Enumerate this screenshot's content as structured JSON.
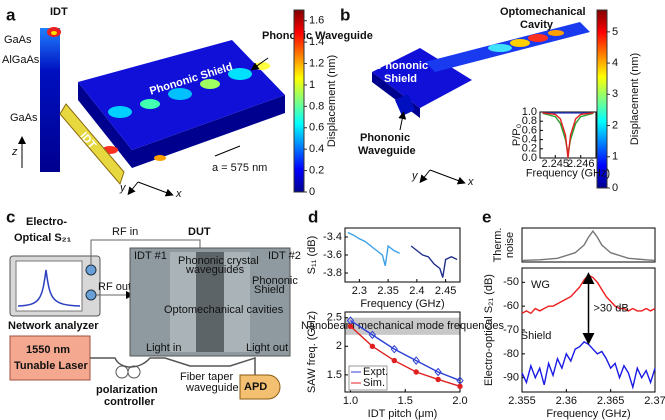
{
  "panel_a": {
    "label": "a",
    "idt": "IDT",
    "layers": [
      "GaAs",
      "AlGaAs",
      "GaAs"
    ],
    "z_axis": "z",
    "shield": "Phononic Shield",
    "waveguide": "Phononic Waveguide",
    "idt_device": "IDT",
    "period": "a = 575 nm",
    "y_axis": "y",
    "x_axis": "x",
    "colorbar": {
      "label": "Displacement (nm)",
      "ylim": [
        0,
        1.7
      ],
      "yticks": [
        0,
        0.2,
        0.4,
        0.6,
        0.8,
        1,
        1.2,
        1.4,
        1.6
      ]
    }
  },
  "panel_b": {
    "label": "b",
    "cavity_lines": [
      "Optomechanical",
      "Cavity"
    ],
    "shield_lines": [
      "Phononic",
      "Shield"
    ],
    "waveguide_lines": [
      "Phononic",
      "Waveguide"
    ],
    "y_axis": "y",
    "x_axis": "x",
    "colorbar": {
      "label": "Displacement (nm)",
      "ylim": [
        0,
        5.7
      ],
      "yticks": [
        0,
        1,
        2,
        3,
        4,
        5
      ]
    }
  },
  "panel_c": {
    "label": "c",
    "title_lines": [
      "Electro-",
      "Optical S₂₁"
    ],
    "rf_in": "RF in",
    "rf_out": "RF out",
    "analyzer": "Network analyzer",
    "dut": "DUT",
    "idt1": "IDT #1",
    "idt2": "IDT #2",
    "pc_waveguides_lines": [
      "Phononic crystal",
      "waveguides"
    ],
    "shield_lines": [
      "Phononic",
      "Shield"
    ],
    "cavities": "Optomechanical cavities",
    "laser_lines": [
      "1550 nm",
      "Tunable Laser"
    ],
    "polarization_lines": [
      "polarization",
      "controller"
    ],
    "light_in": "Light in",
    "fiber_lines": [
      "Fiber taper",
      "waveguide"
    ],
    "light_out": "Light out",
    "apd": "APD"
  },
  "panel_d": {
    "label": "d"
  },
  "panel_e": {
    "label": "e"
  },
  "chart_data": [
    {
      "type": "line",
      "ylabel": "P/P₀",
      "xlabel": "Frequency (GHz)",
      "x": [
        2.2445,
        2.245,
        2.2452,
        2.2454,
        2.2455,
        2.2456,
        2.2458,
        2.246,
        2.2465
      ],
      "xlim": [
        2.2444,
        2.2466
      ],
      "xticks": [
        2.245,
        2.246
      ],
      "ylim": [
        0,
        1
      ],
      "yticks": [
        {
          "value": 0,
          "label": "0.0"
        },
        0.2,
        0.4,
        0.6,
        0.8,
        {
          "value": 1,
          "label": "1.0"
        }
      ],
      "series": [
        {
          "color": "#2b3fbf",
          "values": [
            0.98,
            0.98,
            0.98,
            0.98,
            0.98,
            0.98,
            0.98,
            0.98,
            0.98
          ]
        },
        {
          "color": "#2ca02c",
          "values": [
            0.97,
            0.9,
            0.75,
            0.4,
            0.1,
            0.4,
            0.75,
            0.9,
            0.97
          ]
        },
        {
          "color": "#e02020",
          "values": [
            0.98,
            0.95,
            0.85,
            0.5,
            0,
            0.5,
            0.85,
            0.95,
            0.98
          ]
        }
      ]
    },
    {
      "type": "line",
      "ylabel": "S₁₁ (dB)",
      "xlabel": "Frequency (GHz)",
      "xlim": [
        2.275,
        2.475
      ],
      "xticks": [
        2.3,
        2.35,
        2.4,
        2.45
      ],
      "ylim": [
        -3.9,
        -3.3
      ],
      "yticks": [
        -3.4,
        -3.6,
        -3.8
      ],
      "series": [
        {
          "color": "#3aa0e8",
          "x": [
            2.28,
            2.29,
            2.3,
            2.31,
            2.32,
            2.33,
            2.34,
            2.345,
            2.35,
            2.36,
            2.37
          ],
          "values": [
            -3.35,
            -3.38,
            -3.42,
            -3.45,
            -3.5,
            -3.55,
            -3.6,
            -3.72,
            -3.5,
            -3.55,
            -3.58
          ]
        },
        {
          "color": "#1f2f8a",
          "x": [
            2.39,
            2.4,
            2.41,
            2.42,
            2.43,
            2.44,
            2.445,
            2.45,
            2.46,
            2.47
          ],
          "values": [
            -3.5,
            -3.55,
            -3.6,
            -3.62,
            -3.7,
            -3.75,
            -3.85,
            -3.65,
            -3.62,
            -3.65
          ]
        }
      ]
    },
    {
      "type": "line",
      "ylabel": "SAW freq. (GHz)",
      "xlabel": "IDT pitch (μm)",
      "x": [
        1,
        1.2,
        1.4,
        1.6,
        1.8,
        2
      ],
      "xlim": [
        0.95,
        2
      ],
      "xticks": [
        {
          "value": 1,
          "label": "1.0"
        },
        1.5,
        {
          "value": 2,
          "label": "2.0"
        }
      ],
      "ylim": [
        1.2,
        2.6
      ],
      "yticks": [
        1.5,
        2,
        2.5
      ],
      "legend": "lower left",
      "annotation": {
        "text": "Nanobeam mechanical mode frequencies",
        "range": [
          2.2,
          2.5
        ]
      },
      "series": [
        {
          "name": "Expt.",
          "color": "#2b3fd6",
          "marker": "diamond",
          "values": [
            2.45,
            2.2,
            1.95,
            1.75,
            1.55,
            1.4
          ]
        },
        {
          "name": "Sim.",
          "color": "#e02020",
          "marker": "circle",
          "values": [
            2.35,
            2,
            1.75,
            1.55,
            1.42,
            1.3
          ]
        }
      ]
    },
    {
      "type": "line",
      "ylabel": [
        "Therm.",
        "noise"
      ],
      "x": [
        2.355,
        2.357,
        2.359,
        2.361,
        2.362,
        2.3625,
        2.363,
        2.3635,
        2.364,
        2.365,
        2.367,
        2.369,
        2.37
      ],
      "xlim": [
        2.355,
        2.37
      ],
      "ylim": [
        0,
        1.1
      ],
      "series": [
        {
          "color": "#777777",
          "values": [
            0.05,
            0.07,
            0.12,
            0.3,
            0.55,
            0.8,
            1,
            0.8,
            0.55,
            0.3,
            0.12,
            0.07,
            0.05
          ]
        }
      ]
    },
    {
      "type": "line",
      "ylabel": "Electro-optical S₂₁ (dB)",
      "xlabel": "Frequency (GHz)",
      "x": [
        2.355,
        2.3555,
        2.356,
        2.3565,
        2.357,
        2.3575,
        2.358,
        2.3585,
        2.359,
        2.3595,
        2.36,
        2.3605,
        2.361,
        2.3615,
        2.362,
        2.3625,
        2.363,
        2.3635,
        2.364,
        2.3645,
        2.365,
        2.3655,
        2.366,
        2.3665,
        2.367,
        2.3675,
        2.368,
        2.3685,
        2.369,
        2.3695,
        2.37
      ],
      "xlim": [
        2.355,
        2.37
      ],
      "xticks": [
        2.355,
        2.36,
        2.365,
        2.37
      ],
      "ylim": [
        -96,
        -44
      ],
      "yticks": [
        -50,
        -60,
        -70,
        -80,
        -90
      ],
      "legend": "inline",
      "annotation": {
        "text": ">30 dB"
      },
      "series": [
        {
          "name": "WG",
          "color": "#ee1c1c",
          "values": [
            -63,
            -62,
            -63,
            -61,
            -62,
            -61,
            -60,
            -60,
            -59,
            -58,
            -57,
            -56,
            -54,
            -52,
            -49,
            -47,
            -48,
            -50,
            -53,
            -56,
            -58,
            -60,
            -61,
            -61,
            -62,
            -61,
            -62,
            -62,
            -61,
            -62,
            -61
          ]
        },
        {
          "name": "Shield",
          "color": "#1a1ae6",
          "values": [
            -88,
            -92,
            -85,
            -90,
            -86,
            -93,
            -84,
            -89,
            -82,
            -86,
            -80,
            -83,
            -78,
            -77,
            -75,
            -76,
            -78,
            -80,
            -79,
            -82,
            -86,
            -84,
            -90,
            -85,
            -88,
            -94,
            -86,
            -90,
            -87,
            -92,
            -86
          ]
        }
      ]
    }
  ]
}
